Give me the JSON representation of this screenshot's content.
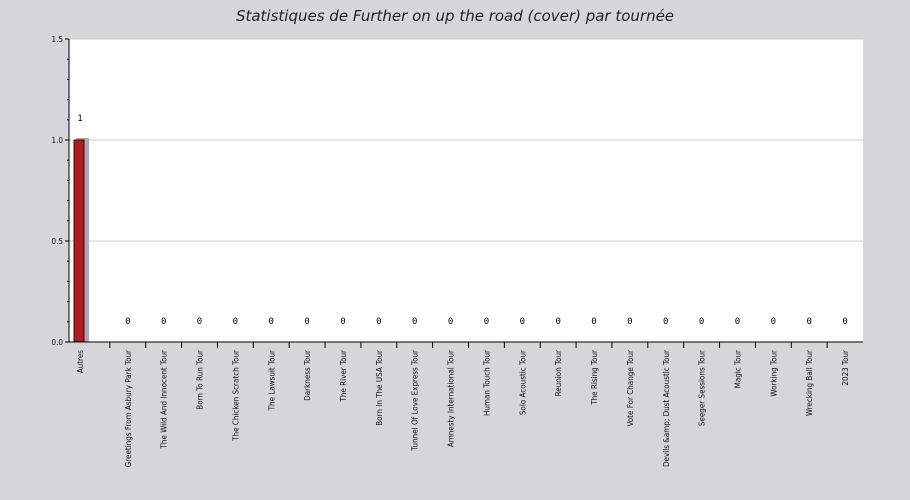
{
  "chart_data": {
    "type": "bar",
    "title": "Statistiques de Further on up the road (cover) par tournée",
    "xlabel": "",
    "ylabel": "",
    "ylim": [
      0,
      1.5
    ],
    "yticks": [
      "0.0",
      "0.5",
      "1.0",
      "1.5"
    ],
    "grid": true,
    "legend": "none",
    "categories": [
      "Autres",
      "Greetings From Asbury Park Tour",
      "The Wild And Innocent Tour",
      "Born To Run Tour",
      "The Chicken Scratch Tour",
      "The Lawsuit Tour",
      "Darkness Tour",
      "The River Tour",
      "Born In The USA Tour",
      "Tunnel Of Love Express Tour",
      "Amnesty International Tour",
      "Human Touch Tour",
      "Solo Acoustic Tour",
      "Reunion Tour",
      "The Rising Tour",
      "Vote For Change Tour",
      "Devils &amp; Dust Acoustic Tour",
      "Seeger Sessions Tour",
      "Magic Tour",
      "Working Tour",
      "Wrecking Ball Tour",
      "2023 Tour"
    ],
    "values": [
      1,
      0,
      0,
      0,
      0,
      0,
      0,
      0,
      0,
      0,
      0,
      0,
      0,
      0,
      0,
      0,
      0,
      0,
      0,
      0,
      0,
      0
    ],
    "value_labels": [
      "1",
      "0",
      "0",
      "0",
      "0",
      "0",
      "0",
      "0",
      "0",
      "0",
      "0",
      "0",
      "0",
      "0",
      "0",
      "0",
      "0",
      "0",
      "0",
      "0",
      "0",
      "0"
    ],
    "colors": {
      "bar_fill": "#b01c1c",
      "bar_stroke": "#3a0a0a",
      "bar_shadow": "#a9a9b8",
      "plot_bg": "#ffffff",
      "page_bg": "#d6d5da",
      "grid": "#cccccc"
    }
  }
}
